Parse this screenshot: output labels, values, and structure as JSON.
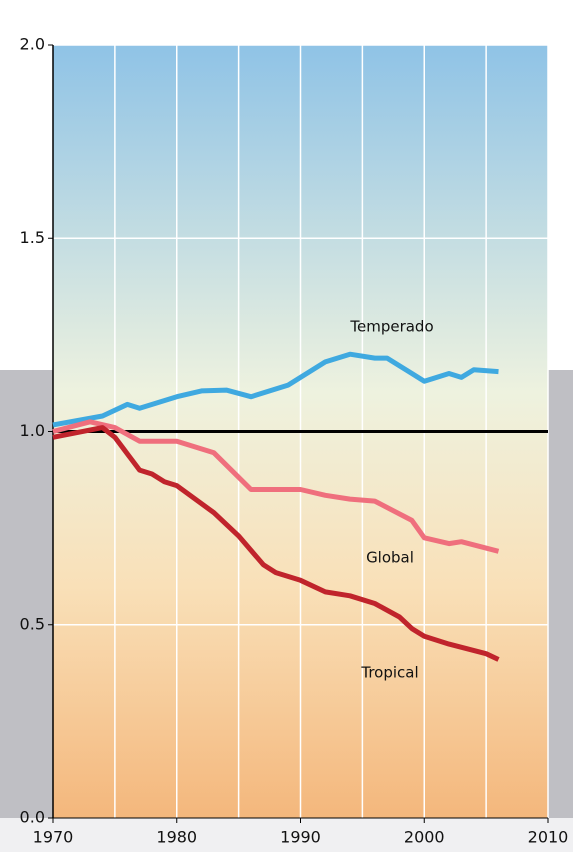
{
  "chart_data": {
    "type": "line",
    "x": [
      1970,
      1980,
      1990,
      2000,
      2010
    ],
    "xlim": [
      1970,
      2010
    ],
    "xticks": [
      1970,
      1980,
      1990,
      2000,
      2010
    ],
    "ylim": [
      0,
      2
    ],
    "yticks": [
      {
        "value": 0,
        "label": "0.0"
      },
      0.5,
      {
        "value": 1,
        "label": "1.0"
      },
      1.5,
      {
        "value": 2,
        "label": "2.0"
      }
    ],
    "grid": true,
    "baseline": 1,
    "series": [
      {
        "name": "Temperado",
        "color": "#3fa9e0",
        "x": [
          1970,
          1974,
          1976,
          1977,
          1980,
          1982,
          1984,
          1986,
          1989,
          1990,
          1992,
          1994,
          1996,
          1997,
          1999,
          2000,
          2002,
          2003,
          2004,
          2006
        ],
        "values": [
          1.017,
          1.04,
          1.07,
          1.06,
          1.09,
          1.105,
          1.107,
          1.09,
          1.12,
          1.14,
          1.18,
          1.2,
          1.19,
          1.19,
          1.15,
          1.13,
          1.15,
          1.14,
          1.16,
          1.155
        ]
      },
      {
        "name": "Global",
        "color": "#ef6f7d",
        "x": [
          1970,
          1973,
          1975,
          1977,
          1980,
          1983,
          1986,
          1990,
          1992,
          1994,
          1996,
          1999,
          2000,
          2002,
          2003,
          2006
        ],
        "values": [
          1.0,
          1.025,
          1.01,
          0.975,
          0.975,
          0.945,
          0.85,
          0.85,
          0.835,
          0.825,
          0.82,
          0.77,
          0.725,
          0.71,
          0.715,
          0.69
        ]
      },
      {
        "name": "Tropical",
        "color": "#c0242c",
        "x": [
          1970,
          1974,
          1975,
          1977,
          1978,
          1979,
          1980,
          1983,
          1985,
          1987,
          1988,
          1990,
          1992,
          1994,
          1996,
          1998,
          1999,
          2000,
          2002,
          2005,
          2006
        ],
        "values": [
          0.985,
          1.01,
          0.985,
          0.9,
          0.89,
          0.87,
          0.86,
          0.79,
          0.73,
          0.655,
          0.635,
          0.615,
          0.585,
          0.575,
          0.555,
          0.52,
          0.49,
          0.47,
          0.45,
          0.425,
          0.41
        ]
      }
    ]
  }
}
